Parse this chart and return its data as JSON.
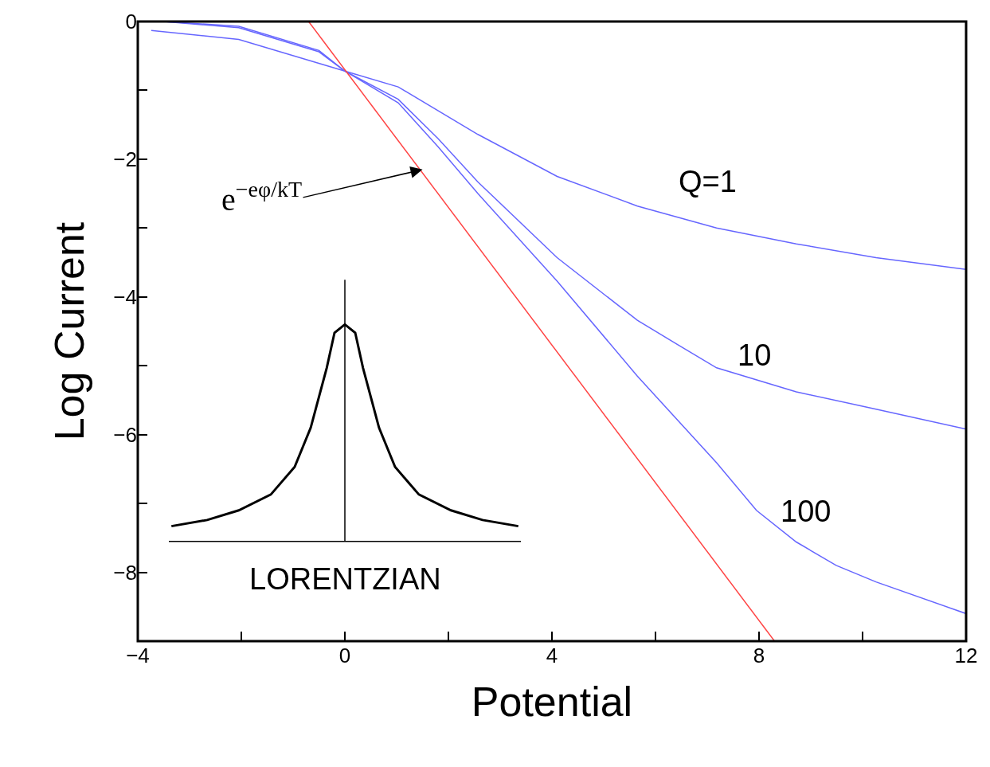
{
  "chart_data": {
    "type": "line",
    "xlabel": "Potential",
    "ylabel": "Log Current",
    "xlim": [
      -4,
      12
    ],
    "ylim": [
      -9,
      0
    ],
    "xticks": [
      -4,
      {
        "value": -2,
        "label": null
      },
      0,
      {
        "value": 2,
        "label": null
      },
      4,
      {
        "value": 6,
        "label": null
      },
      8,
      {
        "value": 10,
        "label": null
      },
      12
    ],
    "yticks": [
      {
        "value": -9,
        "label": null
      },
      -8,
      {
        "value": -7,
        "label": null
      },
      -6,
      {
        "value": -5,
        "label": null
      },
      -4,
      {
        "value": -3,
        "label": null
      },
      -2,
      {
        "value": -1,
        "label": null
      },
      0
    ],
    "legend": false,
    "marker": "none",
    "line_style": "solid",
    "series": [
      {
        "name": "Q=1",
        "color": "#6666ff",
        "x": [
          -3.74,
          -2.05,
          0,
          1.03,
          2.57,
          4.1,
          5.65,
          7.18,
          8.72,
          10.26,
          12
        ],
        "values": [
          -0.13,
          -0.26,
          -0.72,
          -0.95,
          -1.64,
          -2.25,
          -2.68,
          -3.0,
          -3.23,
          -3.43,
          -3.6
        ]
      },
      {
        "name": "10",
        "color": "#6666ff",
        "x": [
          -3.5,
          -2.05,
          -0.5,
          0,
          1.03,
          1.8,
          2.57,
          4.1,
          5.65,
          6.42,
          7.18,
          8.72,
          10.26,
          12
        ],
        "values": [
          0,
          -0.09,
          -0.44,
          -0.72,
          -1.13,
          -1.7,
          -2.33,
          -3.43,
          -4.34,
          -4.69,
          -5.03,
          -5.38,
          -5.63,
          -5.92
        ]
      },
      {
        "name": "100",
        "color": "#6666ff",
        "x": [
          -3.5,
          -2.05,
          -0.5,
          0,
          1.03,
          1.8,
          2.57,
          4.1,
          5.65,
          7.18,
          7.95,
          8.72,
          9.49,
          10.26,
          12
        ],
        "values": [
          0,
          -0.07,
          -0.42,
          -0.72,
          -1.18,
          -1.82,
          -2.5,
          -3.77,
          -5.15,
          -6.41,
          -7.1,
          -7.56,
          -7.9,
          -8.14,
          -8.6
        ]
      },
      {
        "color": "#ff4444",
        "x": [
          -0.7,
          8.3
        ],
        "values": [
          0,
          -9
        ]
      },
      {
        "color": "#000000",
        "x": [
          -3.35,
          -2.66,
          -2.05,
          -1.43,
          -0.97,
          -0.66,
          -0.35,
          -0.2,
          0,
          0.2,
          0.35,
          0.66,
          0.97,
          1.43,
          2.05,
          2.66,
          3.35
        ],
        "values": [
          -7.33,
          -7.24,
          -7.1,
          -6.87,
          -6.47,
          -5.9,
          -5.03,
          -4.52,
          -4.4,
          -4.52,
          -5.03,
          -5.9,
          -6.47,
          -6.87,
          -7.1,
          -7.24,
          -7.33
        ]
      },
      {
        "color": "#000000",
        "x": [
          0,
          0
        ],
        "values": [
          -3.75,
          -7.55
        ]
      },
      {
        "color": "#000000",
        "x": [
          -3.4,
          3.4
        ],
        "values": [
          -7.55,
          -7.55
        ]
      }
    ],
    "annotations": [
      "LORENTZIAN",
      {
        "text": "e$^{−eφ/kT}$",
        "x": 1.5,
        "y": -2.15
      }
    ]
  }
}
